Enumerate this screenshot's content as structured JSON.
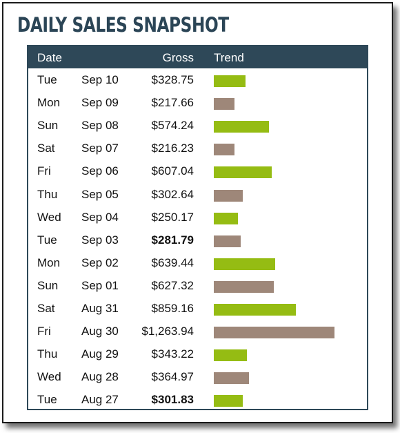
{
  "title": "DAILY SALES SNAPSHOT",
  "headers": {
    "date": "Date",
    "gross": "Gross",
    "trend": "Trend"
  },
  "colors": {
    "positive": "#95bc13",
    "negative": "#9e8779",
    "header": "#2e4858"
  },
  "chart_data": {
    "type": "bar",
    "title": "DAILY SALES SNAPSHOT",
    "columns": [
      "Date",
      "Gross",
      "Trend"
    ],
    "rows": [
      {
        "day": "Tue",
        "date": "Sep 10",
        "gross": "$328.75",
        "value": 328.75,
        "color": "green",
        "bold": false
      },
      {
        "day": "Mon",
        "date": "Sep 09",
        "gross": "$217.66",
        "value": 217.66,
        "color": "taupe",
        "bold": false
      },
      {
        "day": "Sun",
        "date": "Sep 08",
        "gross": "$574.24",
        "value": 574.24,
        "color": "green",
        "bold": false
      },
      {
        "day": "Sat",
        "date": "Sep 07",
        "gross": "$216.23",
        "value": 216.23,
        "color": "taupe",
        "bold": false
      },
      {
        "day": "Fri",
        "date": "Sep 06",
        "gross": "$607.04",
        "value": 607.04,
        "color": "green",
        "bold": false
      },
      {
        "day": "Thu",
        "date": "Sep 05",
        "gross": "$302.64",
        "value": 302.64,
        "color": "taupe",
        "bold": false
      },
      {
        "day": "Wed",
        "date": "Sep 04",
        "gross": "$250.17",
        "value": 250.17,
        "color": "green",
        "bold": false
      },
      {
        "day": "Tue",
        "date": "Sep 03",
        "gross": "$281.79",
        "value": 281.79,
        "color": "taupe",
        "bold": true
      },
      {
        "day": "Mon",
        "date": "Sep 02",
        "gross": "$639.44",
        "value": 639.44,
        "color": "green",
        "bold": false
      },
      {
        "day": "Sun",
        "date": "Sep 01",
        "gross": "$627.32",
        "value": 627.32,
        "color": "taupe",
        "bold": false
      },
      {
        "day": "Sat",
        "date": "Aug 31",
        "gross": "$859.16",
        "value": 859.16,
        "color": "green",
        "bold": false
      },
      {
        "day": "Fri",
        "date": "Aug 30",
        "gross": "$1,263.94",
        "value": 1263.94,
        "color": "taupe",
        "bold": false
      },
      {
        "day": "Thu",
        "date": "Aug 29",
        "gross": "$343.22",
        "value": 343.22,
        "color": "green",
        "bold": false
      },
      {
        "day": "Wed",
        "date": "Aug 28",
        "gross": "$364.97",
        "value": 364.97,
        "color": "taupe",
        "bold": false
      },
      {
        "day": "Tue",
        "date": "Aug 27",
        "gross": "$301.83",
        "value": 301.83,
        "color": "green",
        "bold": true
      }
    ]
  }
}
